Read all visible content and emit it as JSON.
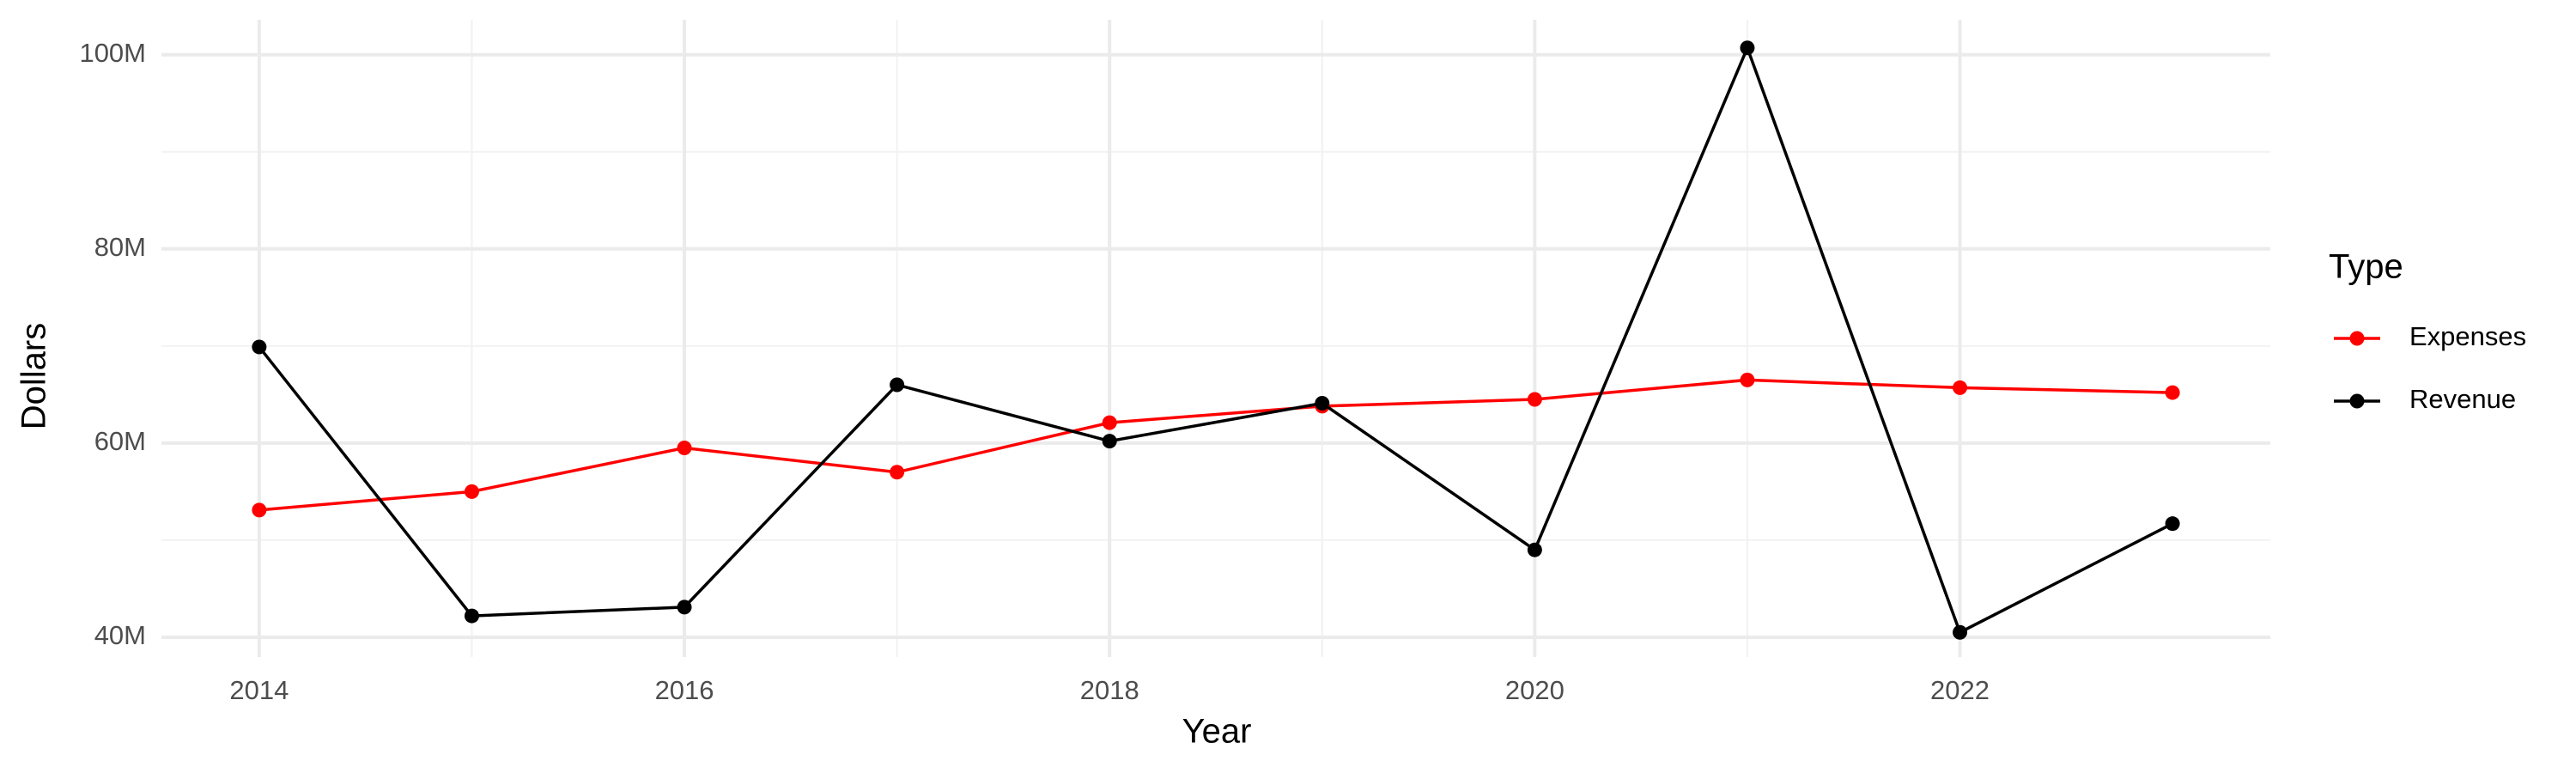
{
  "chart_data": {
    "type": "line",
    "x_label": "Year",
    "y_label": "Dollars",
    "legend_title": "Type",
    "x": [
      2014,
      2015,
      2016,
      2017,
      2018,
      2019,
      2020,
      2021,
      2022,
      2023
    ],
    "series": [
      {
        "name": "Expenses",
        "color": "#ff0000",
        "values": [
          53100000,
          55000000,
          59500000,
          57000000,
          62100000,
          63800000,
          64500000,
          66500000,
          65700000,
          65200000
        ]
      },
      {
        "name": "Revenue",
        "color": "#000000",
        "values": [
          69900000,
          42200000,
          43100000,
          66000000,
          60200000,
          64100000,
          49000000,
          100700000,
          40500000,
          51700000
        ]
      }
    ],
    "xlim": [
      2013.54,
      2023.46
    ],
    "xticks": [
      2014,
      2016,
      2018,
      2020,
      2022
    ],
    "ylim": [
      37960000,
      103600000
    ],
    "yticks": [
      {
        "value": 40000000,
        "label": "40M"
      },
      {
        "value": 60000000,
        "label": "60M"
      },
      {
        "value": 80000000,
        "label": "80M"
      },
      {
        "value": 100000000,
        "label": "100M"
      }
    ],
    "grid": true,
    "legend": "right"
  }
}
